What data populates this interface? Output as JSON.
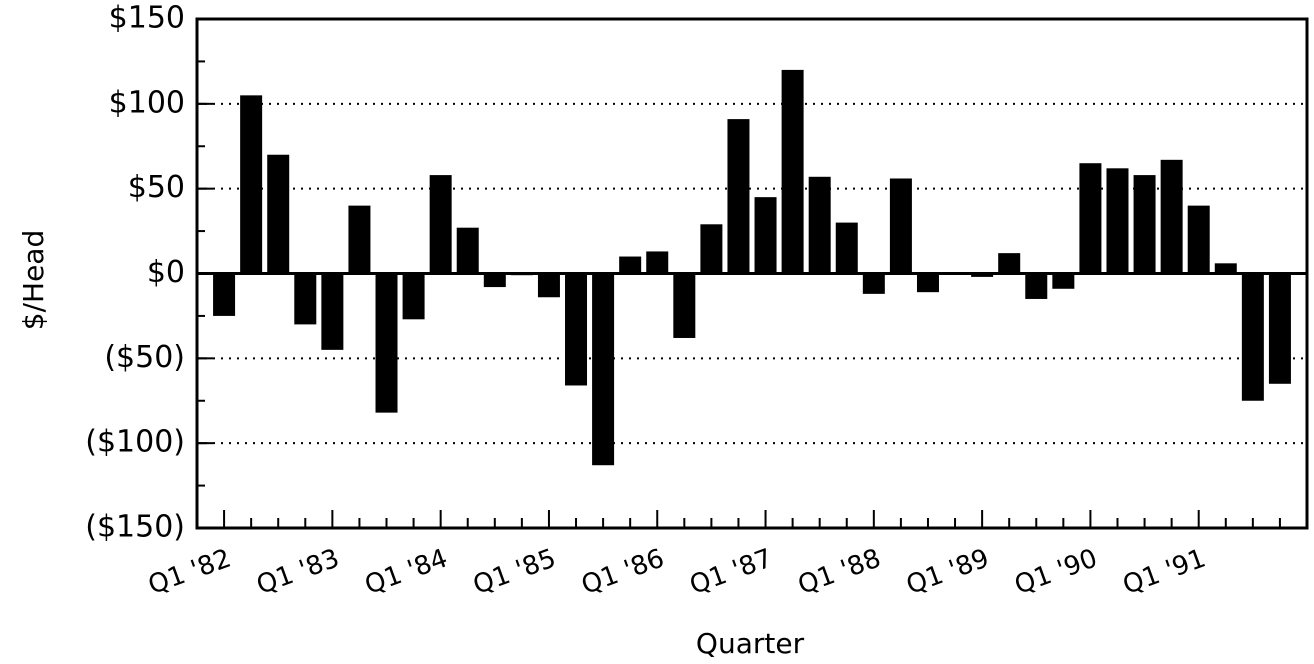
{
  "chart_data": {
    "type": "bar",
    "x_label": "Quarter",
    "y_label": "$/Head",
    "categories": [
      "Q1 '82",
      null,
      null,
      null,
      "Q1 '83",
      null,
      null,
      null,
      "Q1 '84",
      null,
      null,
      null,
      "Q1 '85",
      null,
      null,
      null,
      "Q1 '86",
      null,
      null,
      null,
      "Q1 '87",
      null,
      null,
      null,
      "Q1 '88",
      null,
      null,
      null,
      "Q1 '89",
      null,
      null,
      null,
      "Q1 '90",
      null,
      null,
      null,
      "Q1 '91",
      null,
      null,
      null
    ],
    "values": [
      -25,
      105,
      70,
      -30,
      -45,
      40,
      -82,
      -27,
      58,
      27,
      -8,
      -1,
      -14,
      -66,
      -113,
      10,
      13,
      -38,
      29,
      91,
      45,
      120,
      57,
      30,
      -12,
      56,
      -11,
      0,
      -2,
      12,
      -15,
      -9,
      65,
      62,
      58,
      67,
      40,
      6,
      -75,
      -65
    ],
    "color": "#000000",
    "ylim": [
      -150,
      150
    ],
    "yticks": [
      {
        "value": 150,
        "label": "$150"
      },
      {
        "value": 100,
        "label": "$100"
      },
      {
        "value": 50,
        "label": "$50"
      },
      {
        "value": 0,
        "label": "$0"
      },
      {
        "value": -50,
        "label": "($50)"
      },
      {
        "value": -100,
        "label": "($100)"
      },
      {
        "value": -150,
        "label": "($150)"
      }
    ],
    "grid": true
  }
}
